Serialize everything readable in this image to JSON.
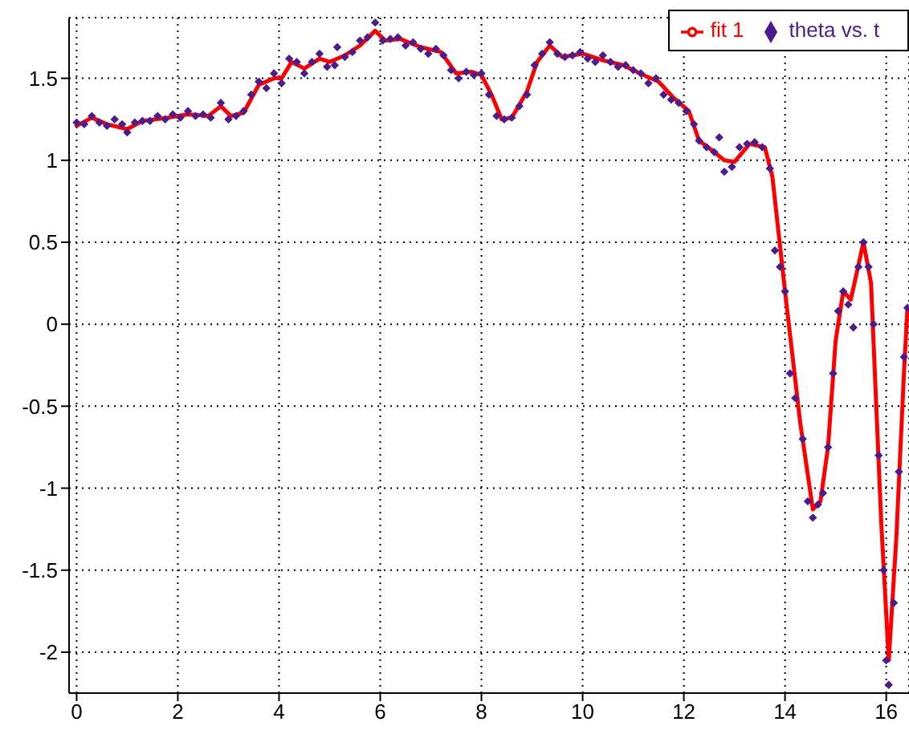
{
  "chart_data": {
    "type": "scatter",
    "xlim": [
      -0.15,
      16.45
    ],
    "ylim": [
      -2.25,
      1.87
    ],
    "xticks": [
      0,
      2,
      4,
      6,
      8,
      10,
      12,
      14,
      16
    ],
    "yticks": [
      -2,
      -1.5,
      -1,
      -0.5,
      0,
      0.5,
      1,
      1.5
    ],
    "grid": true,
    "legend": "top right",
    "series": [
      {
        "name": "theta vs. t",
        "type": "scatter",
        "color": "#4b1c8f",
        "marker": "diamond",
        "x": [
          0,
          0.15,
          0.3,
          0.45,
          0.6,
          0.75,
          0.9,
          1.0,
          1.15,
          1.3,
          1.45,
          1.6,
          1.75,
          1.9,
          2.05,
          2.2,
          2.35,
          2.5,
          2.65,
          2.85,
          3.0,
          3.15,
          3.3,
          3.45,
          3.6,
          3.75,
          3.9,
          4.05,
          4.2,
          4.35,
          4.5,
          4.65,
          4.8,
          4.95,
          5.1,
          5.15,
          5.3,
          5.45,
          5.6,
          5.75,
          5.9,
          6.05,
          6.2,
          6.35,
          6.5,
          6.65,
          6.8,
          6.95,
          7.1,
          7.25,
          7.4,
          7.55,
          7.7,
          7.85,
          8.0,
          8.15,
          8.3,
          8.45,
          8.6,
          8.75,
          8.9,
          9.05,
          9.2,
          9.35,
          9.5,
          9.65,
          9.8,
          9.95,
          10.1,
          10.25,
          10.4,
          10.55,
          10.7,
          10.85,
          11.0,
          11.15,
          11.3,
          11.45,
          11.6,
          11.75,
          11.9,
          12.05,
          12.2,
          12.3,
          12.45,
          12.6,
          12.7,
          12.8,
          12.95,
          13.1,
          13.25,
          13.4,
          13.55,
          13.7,
          13.8,
          13.9,
          14.0,
          14.1,
          14.2,
          14.35,
          14.45,
          14.55,
          14.65,
          14.75,
          14.85,
          14.95,
          15.05,
          15.15,
          15.25,
          15.35,
          15.45,
          15.55,
          15.65,
          15.75,
          15.85,
          15.95,
          16.0,
          16.05,
          16.15,
          16.25,
          16.35,
          16.42
        ],
        "values": [
          1.23,
          1.22,
          1.27,
          1.23,
          1.21,
          1.25,
          1.22,
          1.17,
          1.23,
          1.24,
          1.24,
          1.27,
          1.25,
          1.28,
          1.26,
          1.3,
          1.27,
          1.28,
          1.26,
          1.35,
          1.25,
          1.27,
          1.3,
          1.4,
          1.48,
          1.44,
          1.53,
          1.47,
          1.62,
          1.6,
          1.53,
          1.6,
          1.65,
          1.57,
          1.58,
          1.69,
          1.63,
          1.66,
          1.73,
          1.75,
          1.84,
          1.73,
          1.74,
          1.75,
          1.7,
          1.72,
          1.68,
          1.65,
          1.68,
          1.64,
          1.55,
          1.5,
          1.54,
          1.52,
          1.53,
          1.4,
          1.27,
          1.25,
          1.26,
          1.33,
          1.4,
          1.58,
          1.65,
          1.72,
          1.65,
          1.63,
          1.64,
          1.66,
          1.62,
          1.6,
          1.64,
          1.6,
          1.57,
          1.58,
          1.55,
          1.53,
          1.47,
          1.5,
          1.4,
          1.37,
          1.35,
          1.3,
          1.22,
          1.12,
          1.08,
          1.05,
          1.14,
          0.93,
          0.96,
          1.08,
          1.1,
          1.11,
          1.08,
          0.95,
          0.45,
          0.35,
          0.2,
          -0.3,
          -0.45,
          -0.7,
          -1.08,
          -1.18,
          -1.1,
          -1.03,
          -0.75,
          -0.3,
          0.08,
          0.2,
          0.12,
          -0.02,
          0.35,
          0.5,
          0.35,
          0.0,
          -0.8,
          -1.5,
          -2.05,
          -2.2,
          -1.7,
          -0.9,
          -0.2,
          0.1
        ]
      },
      {
        "name": "fit 1",
        "type": "line",
        "color": "#ff0000",
        "marker": "none",
        "x": [
          0,
          0.3,
          0.6,
          1.0,
          1.3,
          1.8,
          2.2,
          2.6,
          2.85,
          3.05,
          3.3,
          3.6,
          3.9,
          4.05,
          4.25,
          4.5,
          4.8,
          5.0,
          5.3,
          5.6,
          5.9,
          6.1,
          6.4,
          6.8,
          7.2,
          7.5,
          7.8,
          8.0,
          8.2,
          8.4,
          8.6,
          8.9,
          9.1,
          9.35,
          9.6,
          10.0,
          10.4,
          10.8,
          11.2,
          11.5,
          11.8,
          12.1,
          12.3,
          12.6,
          12.8,
          13.0,
          13.3,
          13.6,
          13.75,
          14.0,
          14.3,
          14.55,
          14.7,
          14.85,
          15.0,
          15.15,
          15.3,
          15.55,
          15.7,
          15.9,
          16.05,
          16.2,
          16.35,
          16.42
        ],
        "values": [
          1.21,
          1.26,
          1.22,
          1.19,
          1.24,
          1.26,
          1.28,
          1.27,
          1.33,
          1.27,
          1.29,
          1.46,
          1.5,
          1.5,
          1.6,
          1.56,
          1.62,
          1.6,
          1.64,
          1.7,
          1.79,
          1.73,
          1.74,
          1.69,
          1.66,
          1.53,
          1.54,
          1.52,
          1.4,
          1.25,
          1.26,
          1.42,
          1.6,
          1.7,
          1.63,
          1.65,
          1.61,
          1.58,
          1.52,
          1.48,
          1.38,
          1.3,
          1.12,
          1.05,
          1.0,
          0.99,
          1.1,
          1.08,
          0.9,
          0.2,
          -0.6,
          -1.13,
          -1.08,
          -0.75,
          -0.1,
          0.2,
          0.15,
          0.5,
          0.25,
          -1.2,
          -2.05,
          -1.3,
          -0.3,
          0.1
        ]
      }
    ]
  }
}
